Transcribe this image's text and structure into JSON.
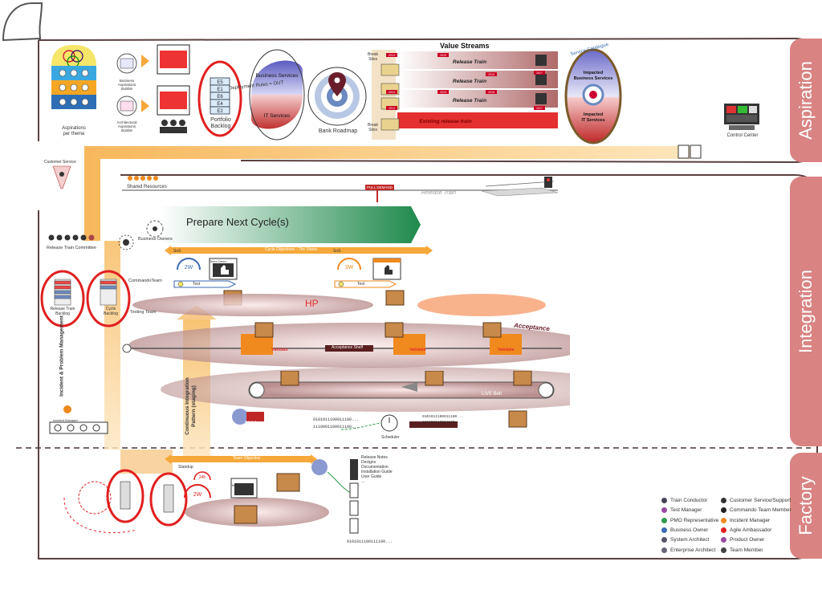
{
  "sections": {
    "aspiration": "Aspiration",
    "integration": "Integration",
    "factory": "Factory"
  },
  "aspiration": {
    "aspirations_per_theme": "Aspirations\nper theme",
    "business_aspirations_bubble": "Business\nAspirations\nBubble",
    "architectural_aspirations_bubble": "Architectural\nAspirations\nBubble",
    "portfolio_backlog": "Portfolio\nBacklog",
    "epics": [
      "E5",
      "E1",
      "E6",
      "E4",
      "E2"
    ],
    "business_services": "Business Services",
    "it_services": "IT Services",
    "deployment_rules": "Deployment Rules = OUT",
    "bank_roadmap": "Bank Roadmap",
    "value_streams": "Value Streams",
    "break_silos": "Break\nSilos",
    "release_train": "Release Train",
    "existing_release_train": "Existing release train",
    "years_left": [
      "2014",
      "2014",
      "2014"
    ],
    "years_mid": [
      "2015",
      "2015",
      "2015"
    ],
    "years_right1": [
      "2016",
      "2016",
      "2016"
    ],
    "years_right2": [
      "2017",
      "2017",
      "2017"
    ],
    "service_catalogue": "Service Catalogue",
    "impacted_business_services": "Impacted\nBusiness Services",
    "impacted_it_services": "Impacted\nIT Services",
    "control_center": "Control Center"
  },
  "integration": {
    "customer_service": "Customer Service",
    "shared_resources": "Shared Resources",
    "pull_demand": "PULL DEMAND",
    "release_train_track": "Release Train",
    "prepare_next_cycle": "Prepare Next Cycle(s)",
    "business_owners": "Business Owners",
    "release_train_committee": "Release Train Committee",
    "cycle_objectives": "Cycle Objectives - The Vision",
    "sos": "SoS",
    "team_demo": "Team Demo",
    "w2": "2W",
    "w3": "3W",
    "test": "Test",
    "hp": "HP",
    "commando_team": "CommandoTeam",
    "testing_team": "Testing Team",
    "release_train_backlog": "Release Train\nBacklog",
    "cycle_backlog": "Cycle\nBacklog",
    "acceptance": "Acceptance",
    "acceptance_shelf": "Acceptance Shelf",
    "acceptance_demo": "Acceptance Demo",
    "validate": "Validate",
    "live_belt": "LIVE Belt",
    "live": "LIVE",
    "continuous_integration": "Continuous Integration\nPattern (staging)",
    "incident_problem_management": "Incident & Problem Management",
    "incident_manager": "Incident Manager",
    "year": "2014",
    "scheduler": "Scheduler",
    "binary_a": "0101011100011100...",
    "binary_b": "1110001100011100...",
    "binary_c": "0101011100011100...",
    "binary_d": "111000110011100..."
  },
  "factory": {
    "team_objective": "Team Objective",
    "standup": "Standup",
    "h24": "24h",
    "w2": "2W",
    "team_demo": "Team Demo",
    "doc_list": [
      "Release Notes",
      "Designs",
      "Documentation",
      "Installation Guide",
      "User Guide",
      "..."
    ],
    "binary": "0101011100111100..."
  },
  "legend": [
    "Train Conductor",
    "Test Manager",
    "PMO Representative",
    "Business Owner",
    "System Architect",
    "Enterprise Architect",
    "Customer Service/Support",
    "Commando Team Member",
    "Incident Manager",
    "Agile Ambassador",
    "Product Owner",
    "Team Member"
  ],
  "colors": {
    "tab": "#d98383",
    "red": "#e02020",
    "orange": "#f08a1e",
    "belt_orange": "#f7c070",
    "maroon": "#5a1f1f",
    "green": "#2e9a4a",
    "blue_target": "#4a6ea8"
  }
}
